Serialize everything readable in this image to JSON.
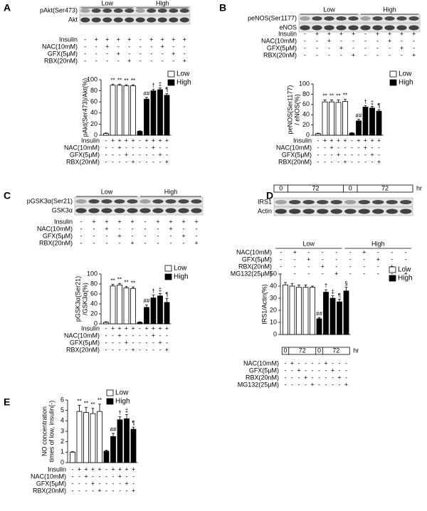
{
  "chart_data": [
    {
      "type": "bar",
      "panel": "A",
      "blot_labels": [
        "pAkt(Ser473)",
        "Akt"
      ],
      "blot_groups": [
        "Low",
        "High"
      ],
      "rows": [
        {
          "label": "Insulin",
          "signs": [
            "-",
            "+",
            "+",
            "+",
            "+",
            "-",
            "+",
            "+",
            "+",
            "+"
          ]
        },
        {
          "label": "NAC(10mM)",
          "signs": [
            "-",
            "-",
            "+",
            "-",
            "-",
            "-",
            "-",
            "+",
            "-",
            "-"
          ]
        },
        {
          "label": "GFX(5μM)",
          "signs": [
            "-",
            "-",
            "-",
            "+",
            "-",
            "-",
            "-",
            "-",
            "+",
            "-"
          ]
        },
        {
          "label": "RBX(20nM)",
          "signs": [
            "-",
            "-",
            "-",
            "-",
            "+",
            "-",
            "-",
            "-",
            "-",
            "+"
          ]
        }
      ],
      "ylabel": [
        "pAkt(Ser473)/Akt(%)"
      ],
      "ylim": [
        0,
        100
      ],
      "yticks": [
        0,
        20,
        40,
        60,
        80,
        100
      ],
      "categories": [
        null,
        null,
        null,
        null,
        null,
        null,
        null,
        null,
        null,
        null
      ],
      "series": [
        {
          "name": "Low",
          "color": "#ffffff",
          "values": [
            3,
            90,
            90,
            89,
            89,
            null,
            null,
            null,
            null,
            null
          ],
          "errors": [
            1,
            2,
            2,
            2,
            2,
            null,
            null,
            null,
            null,
            null
          ]
        },
        {
          "name": "High",
          "color": "#000000",
          "values": [
            null,
            null,
            null,
            null,
            null,
            7,
            65,
            80,
            82,
            72
          ],
          "errors": [
            null,
            null,
            null,
            null,
            null,
            1,
            3,
            3,
            3,
            3
          ]
        }
      ],
      "marks": [
        null,
        "**",
        "**",
        "**",
        "**",
        null,
        "##",
        "†",
        "‡",
        "¶"
      ]
    },
    {
      "type": "bar",
      "panel": "B",
      "blot_labels": [
        "peNOS(Ser1177)",
        "eNOS"
      ],
      "blot_groups": [
        "Low",
        "High"
      ],
      "rows": [
        {
          "label": "Insulin",
          "signs": [
            "-",
            "+",
            "+",
            "+",
            "+",
            "-",
            "+",
            "+",
            "+",
            "+"
          ]
        },
        {
          "label": "NAC(10mM)",
          "signs": [
            "-",
            "-",
            "+",
            "-",
            "-",
            "-",
            "-",
            "+",
            "-",
            "-"
          ]
        },
        {
          "label": "GFX(5μM)",
          "signs": [
            "-",
            "-",
            "-",
            "+",
            "-",
            "-",
            "-",
            "-",
            "+",
            "-"
          ]
        },
        {
          "label": "RBX(20nM)",
          "signs": [
            "-",
            "-",
            "-",
            "-",
            "+",
            "-",
            "-",
            "-",
            "-",
            "+"
          ]
        }
      ],
      "ylabel": [
        "peNOS(Ser1177)",
        "/ eNOS(%)"
      ],
      "ylim": [
        0,
        100
      ],
      "yticks": [
        0,
        20,
        40,
        60,
        80,
        100
      ],
      "categories": [
        null,
        null,
        null,
        null,
        null,
        null,
        null,
        null,
        null,
        null
      ],
      "series": [
        {
          "name": "Low",
          "color": "#ffffff",
          "values": [
            3,
            65,
            65,
            64,
            66,
            null,
            null,
            null,
            null,
            null
          ],
          "errors": [
            1,
            4,
            4,
            5,
            4,
            null,
            null,
            null,
            null,
            null
          ]
        },
        {
          "name": "High",
          "color": "#000000",
          "values": [
            null,
            null,
            null,
            null,
            null,
            4,
            28,
            55,
            53,
            47
          ],
          "errors": [
            null,
            null,
            null,
            null,
            null,
            1,
            3,
            3,
            3,
            3
          ]
        }
      ],
      "marks": [
        null,
        "**",
        "**",
        "**",
        "**",
        null,
        "##",
        "†",
        "‡",
        "¶"
      ]
    },
    {
      "type": "bar",
      "panel": "C",
      "blot_labels": [
        "pGSK3α(Ser21)",
        "GSK3α"
      ],
      "blot_groups": [
        "Low",
        "High"
      ],
      "rows": [
        {
          "label": "Insulin",
          "signs": [
            "-",
            "+",
            "+",
            "+",
            "+",
            "-",
            "+",
            "+",
            "+",
            "+"
          ]
        },
        {
          "label": "NAC(10mM)",
          "signs": [
            "-",
            "-",
            "+",
            "-",
            "-",
            "-",
            "-",
            "+",
            "-",
            "-"
          ]
        },
        {
          "label": "GFX(5μM)",
          "signs": [
            "-",
            "-",
            "-",
            "+",
            "-",
            "-",
            "-",
            "-",
            "+",
            "-"
          ]
        },
        {
          "label": "RBX(20nM)",
          "signs": [
            "-",
            "-",
            "-",
            "-",
            "+",
            "-",
            "-",
            "-",
            "-",
            "+"
          ]
        }
      ],
      "ylabel": [
        "pGSK3α(Ser21)",
        "/GSK3α(%)"
      ],
      "ylim": [
        0,
        100
      ],
      "yticks": [
        0,
        20,
        40,
        60,
        80,
        100
      ],
      "categories": [
        null,
        null,
        null,
        null,
        null,
        null,
        null,
        null,
        null,
        null
      ],
      "series": [
        {
          "name": "Low",
          "color": "#ffffff",
          "values": [
            3,
            76,
            78,
            72,
            71,
            null,
            null,
            null,
            null,
            null
          ],
          "errors": [
            1,
            3,
            3,
            3,
            3,
            null,
            null,
            null,
            null,
            null
          ]
        },
        {
          "name": "High",
          "color": "#000000",
          "values": [
            null,
            null,
            null,
            null,
            null,
            3,
            33,
            52,
            56,
            43
          ],
          "errors": [
            null,
            null,
            null,
            null,
            null,
            1,
            5,
            6,
            5,
            8
          ]
        }
      ],
      "marks": [
        null,
        "**",
        "**",
        "**",
        "**",
        null,
        "##",
        "†",
        "‡",
        "¶"
      ]
    },
    {
      "type": "bar",
      "panel": "D",
      "blot_labels": [
        "IRS1",
        "Actin"
      ],
      "blot_groups": [
        "Low",
        "High"
      ],
      "time_labels": [
        "0",
        "72",
        "0",
        "72"
      ],
      "time_unit": "hr",
      "rows": [
        {
          "label": "NAC(10mM)",
          "signs": [
            "-",
            "+",
            "-",
            "-",
            "-",
            "-",
            "+",
            "-",
            "-",
            "-"
          ]
        },
        {
          "label": "GFX(5μM)",
          "signs": [
            "-",
            "-",
            "+",
            "-",
            "-",
            "-",
            "-",
            "+",
            "-",
            "-"
          ]
        },
        {
          "label": "RBX(20nM)",
          "signs": [
            "-",
            "-",
            "-",
            "+",
            "-",
            "-",
            "-",
            "-",
            "+",
            "-"
          ]
        },
        {
          "label": "MG132(25μM)",
          "signs": [
            "-",
            "-",
            "-",
            "-",
            "+",
            "-",
            "-",
            "-",
            "-",
            "+"
          ]
        }
      ],
      "ylabel": [
        "IRS1/Actin(%)"
      ],
      "ylim": [
        0,
        50
      ],
      "yticks": [
        0,
        10,
        20,
        30,
        40,
        50
      ],
      "categories": [
        null,
        null,
        null,
        null,
        null,
        null,
        null,
        null,
        null,
        null
      ],
      "series": [
        {
          "name": "Low",
          "color": "#ffffff",
          "values": [
            41,
            40,
            39,
            39,
            39,
            null,
            null,
            null,
            null,
            null
          ],
          "errors": [
            2,
            2,
            2,
            2,
            1,
            null,
            null,
            null,
            null,
            null
          ]
        },
        {
          "name": "High",
          "color": "#000000",
          "values": [
            null,
            null,
            null,
            null,
            null,
            13,
            35,
            30,
            27,
            36
          ],
          "errors": [
            null,
            null,
            null,
            null,
            null,
            1,
            2,
            2,
            2,
            3
          ]
        }
      ],
      "marks": [
        null,
        null,
        null,
        null,
        null,
        "##",
        "†",
        "‡",
        "¶",
        "§"
      ]
    },
    {
      "type": "bar",
      "panel": "E",
      "rows": [
        {
          "label": "Insulin",
          "signs": [
            "-",
            "+",
            "+",
            "+",
            "+",
            "-",
            "+",
            "+",
            "+",
            "+"
          ]
        },
        {
          "label": "NAC(10mM)",
          "signs": [
            "-",
            "-",
            "+",
            "-",
            "-",
            "-",
            "-",
            "+",
            "-",
            "-"
          ]
        },
        {
          "label": "GFX(5μM)",
          "signs": [
            "-",
            "-",
            "-",
            "+",
            "-",
            "-",
            "-",
            "-",
            "+",
            "-"
          ]
        },
        {
          "label": "RBX(20nM)",
          "signs": [
            "-",
            "-",
            "-",
            "-",
            "+",
            "-",
            "-",
            "-",
            "-",
            "+"
          ]
        }
      ],
      "ylabel": [
        "NO concentration",
        "times of low, insulin(-)"
      ],
      "ylim": [
        0,
        6
      ],
      "yticks": [
        0,
        1,
        2,
        3,
        4,
        5,
        6
      ],
      "categories": [
        null,
        null,
        null,
        null,
        null,
        null,
        null,
        null,
        null,
        null
      ],
      "series": [
        {
          "name": "Low",
          "color": "#ffffff",
          "values": [
            1,
            4.9,
            4.8,
            4.7,
            4.9,
            null,
            null,
            null,
            null,
            null
          ],
          "errors": [
            0.05,
            0.6,
            0.5,
            0.5,
            0.7,
            null,
            null,
            null,
            null,
            null
          ]
        },
        {
          "name": "High",
          "color": "#000000",
          "values": [
            null,
            null,
            null,
            null,
            null,
            1.1,
            2.5,
            4.1,
            4.2,
            3.2
          ],
          "errors": [
            null,
            null,
            null,
            null,
            null,
            0.1,
            0.3,
            0.3,
            0.4,
            0.2
          ]
        }
      ],
      "marks": [
        null,
        "**",
        "**",
        "**",
        "**",
        null,
        "##",
        "†",
        "‡",
        "¶"
      ]
    }
  ]
}
